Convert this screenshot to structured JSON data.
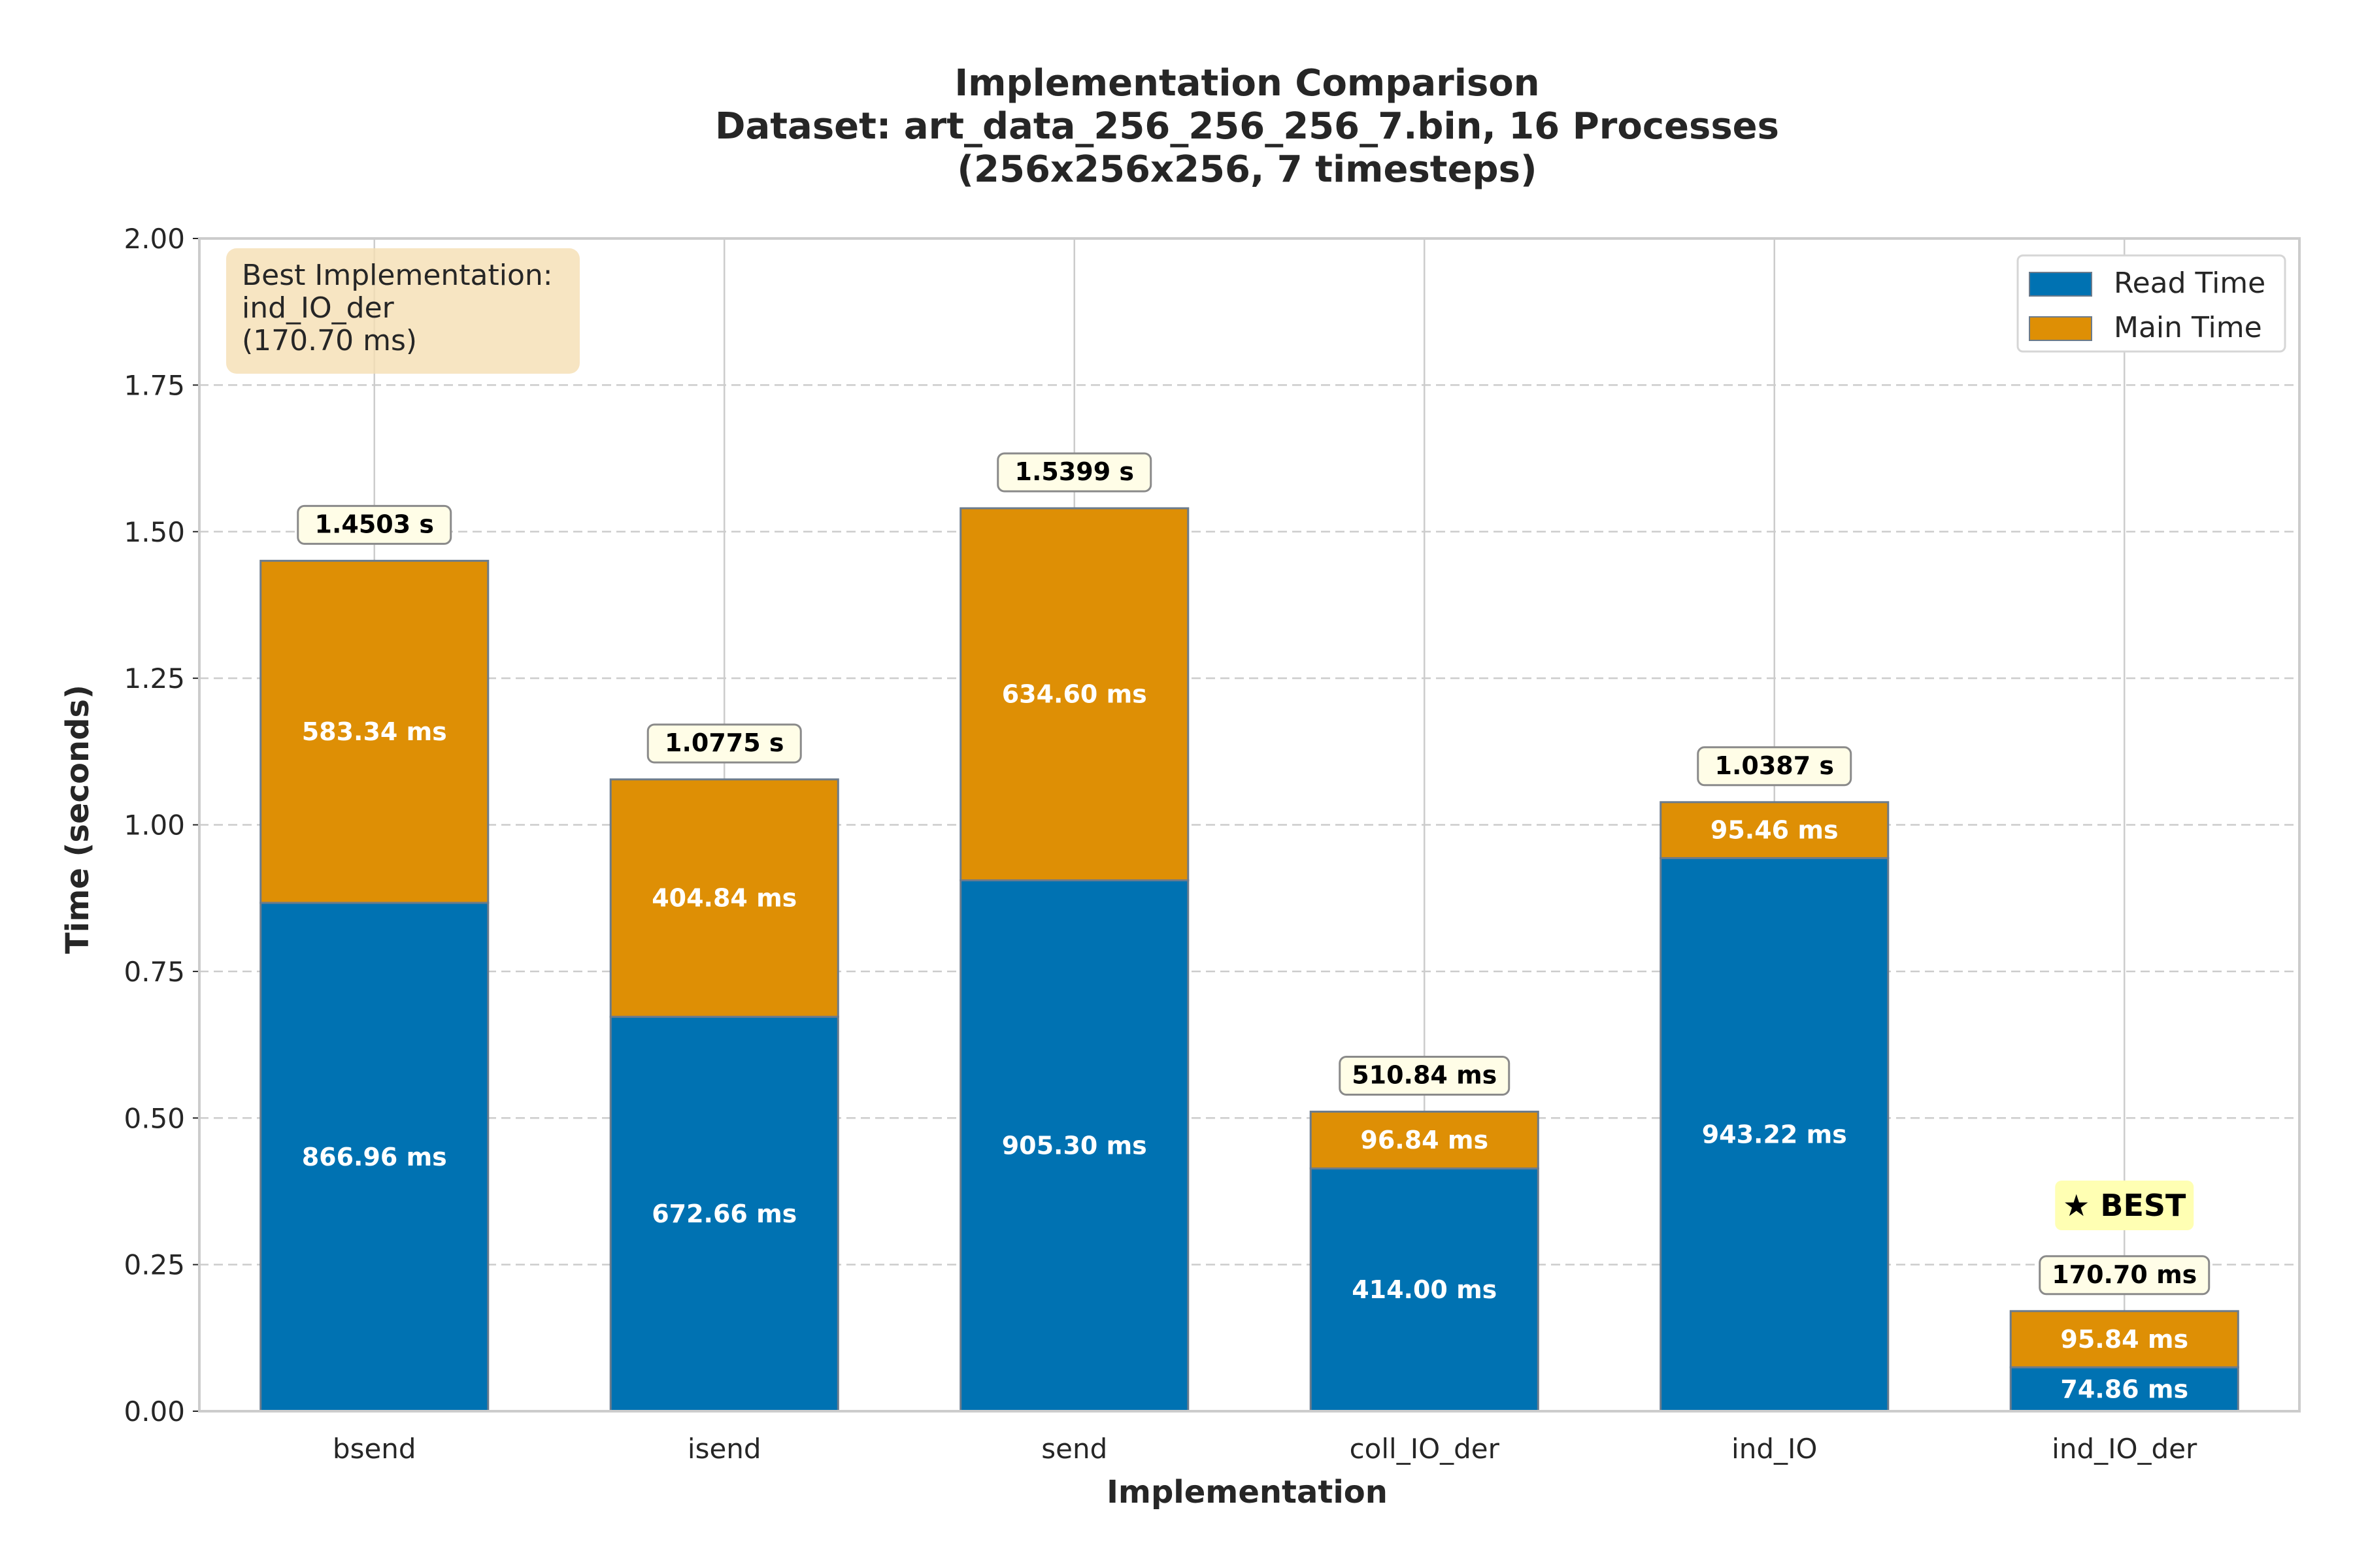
{
  "chart_data": {
    "type": "bar",
    "stacked": true,
    "title_lines": [
      "Implementation Comparison",
      "Dataset: art_data_256_256_256_7.bin, 16 Processes",
      "(256x256x256, 7 timesteps)"
    ],
    "xlabel": "Implementation",
    "ylabel": "Time (seconds)",
    "ylim": [
      0,
      2.0
    ],
    "yticks": [
      "0.00",
      "0.25",
      "0.50",
      "0.75",
      "1.00",
      "1.25",
      "1.50",
      "1.75",
      "2.00"
    ],
    "ytick_values": [
      0,
      0.25,
      0.5,
      0.75,
      1.0,
      1.25,
      1.5,
      1.75,
      2.0
    ],
    "grid": true,
    "legend_position": "top-right",
    "categories": [
      "bsend",
      "isend",
      "send",
      "coll_IO_der",
      "ind_IO",
      "ind_IO_der"
    ],
    "series": [
      {
        "name": "Read Time",
        "color": "#0072b2",
        "values": [
          0.86696,
          0.67266,
          0.9053,
          0.414,
          0.94322,
          0.07486
        ],
        "labels": [
          "866.96 ms",
          "672.66 ms",
          "905.30 ms",
          "414.00 ms",
          "943.22 ms",
          "74.86 ms"
        ]
      },
      {
        "name": "Main Time",
        "color": "#de8f05",
        "values": [
          0.58334,
          0.40484,
          0.6346,
          0.09684,
          0.09546,
          0.09584
        ],
        "labels": [
          "583.34 ms",
          "404.84 ms",
          "634.60 ms",
          "96.84 ms",
          "95.46 ms",
          "95.84 ms"
        ]
      }
    ],
    "totals": [
      1.4503,
      1.0775,
      1.5399,
      0.51084,
      1.0387,
      0.1707
    ],
    "total_labels": [
      "1.4503 s",
      "1.0775 s",
      "1.5399 s",
      "510.84 ms",
      "1.0387 s",
      "170.70 ms"
    ],
    "info_box": {
      "lines": [
        "Best Implementation:",
        "ind_IO_der",
        "(170.70 ms)"
      ],
      "color": "#f5deb3"
    },
    "best_marker": {
      "text": "★ BEST",
      "category": "ind_IO_der",
      "color": "#ffffb3"
    },
    "colors": {
      "total_box_fill": "#fffde7",
      "grid": "#cccccc",
      "axes_border": "#cccccc"
    }
  }
}
